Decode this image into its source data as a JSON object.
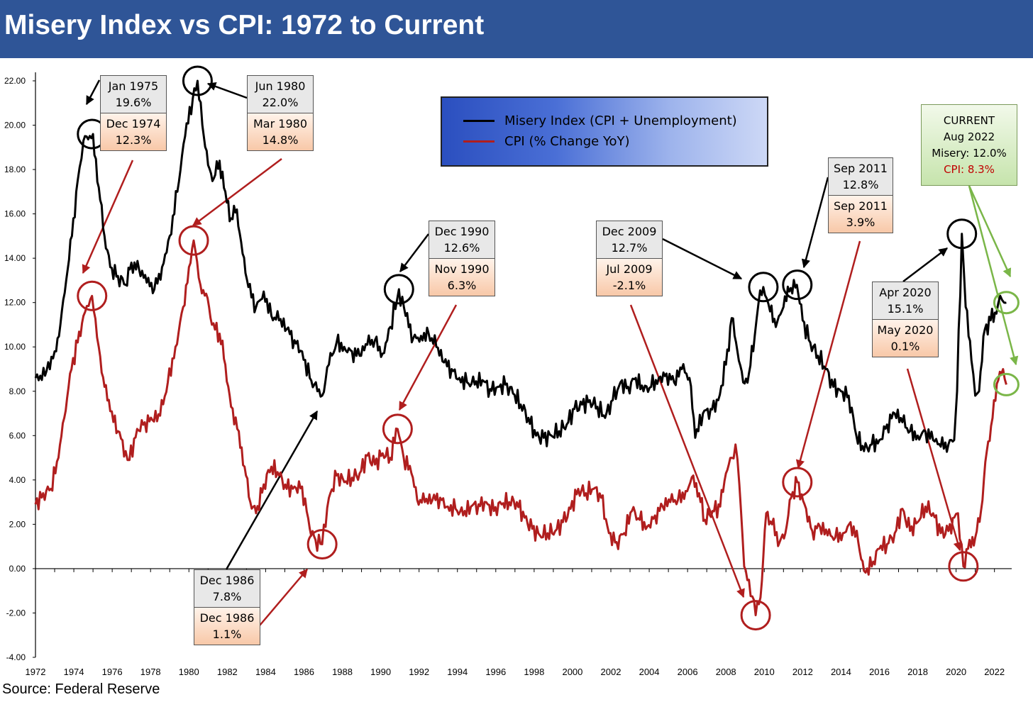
{
  "title": "Misery Index vs CPI: 1972 to Current",
  "source": "Source: Federal Reserve",
  "legend": {
    "misery": "Misery Index (CPI + Unemployment)",
    "cpi": "CPI (% Change YoY)"
  },
  "colors": {
    "misery": "#000000",
    "cpi": "#b01e1e",
    "title_bar": "#2f5597",
    "current_arrow": "#7ab648"
  },
  "current": {
    "l1": "CURRENT",
    "l2": "Aug 2022",
    "l3": "Misery: 12.0%",
    "l4": "CPI: 8.3%"
  },
  "annotations": [
    {
      "top_date": "Jan 1975",
      "top_value": "19.6%",
      "bottom_date": "Dec 1974",
      "bottom_value": "12.3%"
    },
    {
      "top_date": "Jun 1980",
      "top_value": "22.0%",
      "bottom_date": "Mar 1980",
      "bottom_value": "14.8%"
    },
    {
      "top_date": "Dec 1986",
      "top_value": "7.8%",
      "bottom_date": "Dec 1986",
      "bottom_value": "1.1%"
    },
    {
      "top_date": "Dec 1990",
      "top_value": "12.6%",
      "bottom_date": "Nov 1990",
      "bottom_value": "6.3%"
    },
    {
      "top_date": "Dec 2009",
      "top_value": "12.7%",
      "bottom_date": "Jul 2009",
      "bottom_value": "-2.1%"
    },
    {
      "top_date": "Sep 2011",
      "top_value": "12.8%",
      "bottom_date": "Sep 2011",
      "bottom_value": "3.9%"
    },
    {
      "top_date": "Apr 2020",
      "top_value": "15.1%",
      "bottom_date": "May 2020",
      "bottom_value": "0.1%"
    }
  ],
  "chart_data": {
    "type": "line",
    "title": "Misery Index vs CPI: 1972 to Current",
    "xlim": [
      1972,
      2022.9
    ],
    "ylim": [
      -4,
      22
    ],
    "x_ticks": [
      "1972",
      "1974",
      "1976",
      "1978",
      "1980",
      "1982",
      "1984",
      "1986",
      "1988",
      "1990",
      "1992",
      "1994",
      "1996",
      "1998",
      "2000",
      "2002",
      "2004",
      "2006",
      "2008",
      "2010",
      "2012",
      "2014",
      "2016",
      "2018",
      "2020",
      "2022"
    ],
    "y_ticks": [
      "22.00",
      "20.00",
      "18.00",
      "16.00",
      "14.00",
      "12.00",
      "10.00",
      "8.00",
      "6.00",
      "4.00",
      "2.00",
      "0.00",
      "-2.00",
      "-4.00"
    ],
    "grid": false,
    "legend_position": "top-center",
    "series": [
      {
        "name": "Misery Index (CPI + Unemployment)",
        "points": [
          [
            1972.0,
            8.6
          ],
          [
            1972.5,
            8.7
          ],
          [
            1973.0,
            9.8
          ],
          [
            1973.3,
            11.0
          ],
          [
            1973.6,
            13.0
          ],
          [
            1973.9,
            15.0
          ],
          [
            1974.2,
            17.5
          ],
          [
            1974.4,
            18.5
          ],
          [
            1974.5,
            19.3
          ],
          [
            1975.0,
            19.6
          ],
          [
            1975.3,
            17.2
          ],
          [
            1975.6,
            15.0
          ],
          [
            1975.9,
            13.6
          ],
          [
            1976.3,
            13.2
          ],
          [
            1976.7,
            12.8
          ],
          [
            1977.0,
            13.8
          ],
          [
            1977.4,
            13.5
          ],
          [
            1977.8,
            12.9
          ],
          [
            1978.2,
            12.6
          ],
          [
            1978.6,
            13.6
          ],
          [
            1979.0,
            15.0
          ],
          [
            1979.4,
            17.0
          ],
          [
            1979.8,
            19.5
          ],
          [
            1980.2,
            21.2
          ],
          [
            1980.45,
            22.0
          ],
          [
            1980.7,
            20.0
          ],
          [
            1981.0,
            18.2
          ],
          [
            1981.3,
            17.6
          ],
          [
            1981.6,
            18.4
          ],
          [
            1981.9,
            17.0
          ],
          [
            1982.2,
            15.8
          ],
          [
            1982.5,
            16.2
          ],
          [
            1982.8,
            14.2
          ],
          [
            1983.1,
            12.7
          ],
          [
            1983.5,
            11.8
          ],
          [
            1983.9,
            12.5
          ],
          [
            1984.3,
            11.4
          ],
          [
            1984.7,
            11.2
          ],
          [
            1985.1,
            10.8
          ],
          [
            1985.5,
            10.3
          ],
          [
            1985.9,
            9.8
          ],
          [
            1986.3,
            8.6
          ],
          [
            1986.7,
            8.0
          ],
          [
            1986.95,
            7.8
          ],
          [
            1987.3,
            9.2
          ],
          [
            1987.7,
            10.2
          ],
          [
            1988.1,
            10.0
          ],
          [
            1988.5,
            9.8
          ],
          [
            1988.9,
            9.6
          ],
          [
            1989.3,
            10.1
          ],
          [
            1989.7,
            10.3
          ],
          [
            1990.1,
            9.7
          ],
          [
            1990.5,
            10.9
          ],
          [
            1990.95,
            12.6
          ],
          [
            1991.3,
            11.4
          ],
          [
            1991.7,
            10.4
          ],
          [
            1992.1,
            10.5
          ],
          [
            1992.5,
            10.6
          ],
          [
            1992.9,
            10.0
          ],
          [
            1993.3,
            9.3
          ],
          [
            1993.7,
            9.0
          ],
          [
            1994.1,
            8.6
          ],
          [
            1994.5,
            8.4
          ],
          [
            1994.9,
            8.3
          ],
          [
            1995.3,
            8.5
          ],
          [
            1995.7,
            8.1
          ],
          [
            1996.1,
            8.2
          ],
          [
            1996.5,
            8.3
          ],
          [
            1996.9,
            7.9
          ],
          [
            1997.3,
            7.4
          ],
          [
            1997.7,
            6.8
          ],
          [
            1998.1,
            6.0
          ],
          [
            1998.5,
            5.9
          ],
          [
            1998.9,
            6.0
          ],
          [
            1999.3,
            6.2
          ],
          [
            1999.7,
            6.5
          ],
          [
            2000.1,
            7.2
          ],
          [
            2000.5,
            7.4
          ],
          [
            2000.9,
            7.6
          ],
          [
            2001.3,
            7.3
          ],
          [
            2001.7,
            6.8
          ],
          [
            2002.1,
            7.6
          ],
          [
            2002.5,
            8.4
          ],
          [
            2002.9,
            8.2
          ],
          [
            2003.3,
            8.6
          ],
          [
            2003.7,
            8.0
          ],
          [
            2004.1,
            8.2
          ],
          [
            2004.5,
            8.6
          ],
          [
            2004.9,
            8.8
          ],
          [
            2005.3,
            8.4
          ],
          [
            2005.7,
            9.0
          ],
          [
            2006.1,
            8.6
          ],
          [
            2006.4,
            5.9
          ],
          [
            2006.8,
            7.0
          ],
          [
            2007.2,
            7.2
          ],
          [
            2007.6,
            7.6
          ],
          [
            2008.0,
            9.2
          ],
          [
            2008.3,
            11.3
          ],
          [
            2008.6,
            9.8
          ],
          [
            2008.9,
            8.4
          ],
          [
            2009.2,
            8.8
          ],
          [
            2009.5,
            10.5
          ],
          [
            2009.7,
            12.0
          ],
          [
            2009.95,
            12.7
          ],
          [
            2010.3,
            11.6
          ],
          [
            2010.6,
            10.9
          ],
          [
            2011.0,
            11.8
          ],
          [
            2011.3,
            12.5
          ],
          [
            2011.7,
            12.8
          ],
          [
            2012.0,
            11.2
          ],
          [
            2012.4,
            10.2
          ],
          [
            2012.8,
            9.6
          ],
          [
            2013.2,
            9.0
          ],
          [
            2013.6,
            8.2
          ],
          [
            2014.0,
            8.0
          ],
          [
            2014.4,
            7.8
          ],
          [
            2014.8,
            6.0
          ],
          [
            2015.2,
            5.3
          ],
          [
            2015.6,
            5.6
          ],
          [
            2016.0,
            5.8
          ],
          [
            2016.4,
            6.5
          ],
          [
            2016.8,
            7.0
          ],
          [
            2017.2,
            6.6
          ],
          [
            2017.6,
            6.2
          ],
          [
            2018.0,
            6.0
          ],
          [
            2018.4,
            6.2
          ],
          [
            2018.8,
            5.8
          ],
          [
            2019.2,
            5.5
          ],
          [
            2019.6,
            5.6
          ],
          [
            2019.9,
            5.8
          ],
          [
            2020.05,
            8.0
          ],
          [
            2020.3,
            15.1
          ],
          [
            2020.5,
            11.8
          ],
          [
            2020.8,
            9.4
          ],
          [
            2021.0,
            7.8
          ],
          [
            2021.2,
            8.0
          ],
          [
            2021.5,
            10.8
          ],
          [
            2021.8,
            11.2
          ],
          [
            2022.1,
            11.5
          ],
          [
            2022.3,
            12.3
          ],
          [
            2022.5,
            12.0
          ],
          [
            2022.62,
            12.0
          ]
        ]
      },
      {
        "name": "CPI (% Change YoY)",
        "points": [
          [
            1972.0,
            2.9
          ],
          [
            1972.4,
            3.4
          ],
          [
            1972.8,
            3.6
          ],
          [
            1973.2,
            5.0
          ],
          [
            1973.5,
            6.8
          ],
          [
            1973.8,
            8.8
          ],
          [
            1974.2,
            10.2
          ],
          [
            1974.5,
            11.4
          ],
          [
            1974.95,
            12.3
          ],
          [
            1975.3,
            10.0
          ],
          [
            1975.6,
            8.2
          ],
          [
            1975.9,
            7.1
          ],
          [
            1976.3,
            6.2
          ],
          [
            1976.7,
            5.3
          ],
          [
            1976.9,
            4.9
          ],
          [
            1977.3,
            6.3
          ],
          [
            1977.7,
            6.6
          ],
          [
            1978.1,
            6.7
          ],
          [
            1978.5,
            6.9
          ],
          [
            1978.9,
            8.4
          ],
          [
            1979.3,
            10.0
          ],
          [
            1979.7,
            11.8
          ],
          [
            1980.0,
            13.6
          ],
          [
            1980.25,
            14.8
          ],
          [
            1980.6,
            12.8
          ],
          [
            1980.9,
            12.4
          ],
          [
            1981.2,
            11.0
          ],
          [
            1981.6,
            10.6
          ],
          [
            1981.9,
            9.2
          ],
          [
            1982.2,
            7.3
          ],
          [
            1982.6,
            6.2
          ],
          [
            1982.9,
            4.6
          ],
          [
            1983.2,
            3.0
          ],
          [
            1983.5,
            2.5
          ],
          [
            1983.9,
            3.8
          ],
          [
            1984.3,
            4.6
          ],
          [
            1984.7,
            4.2
          ],
          [
            1985.1,
            3.6
          ],
          [
            1985.5,
            3.7
          ],
          [
            1985.9,
            3.7
          ],
          [
            1986.3,
            1.8
          ],
          [
            1986.6,
            1.3
          ],
          [
            1986.95,
            1.1
          ],
          [
            1987.3,
            3.2
          ],
          [
            1987.7,
            4.2
          ],
          [
            1988.1,
            3.9
          ],
          [
            1988.5,
            4.1
          ],
          [
            1988.9,
            4.3
          ],
          [
            1989.3,
            5.1
          ],
          [
            1989.7,
            4.7
          ],
          [
            1990.1,
            5.2
          ],
          [
            1990.5,
            5.0
          ],
          [
            1990.88,
            6.3
          ],
          [
            1991.2,
            5.0
          ],
          [
            1991.6,
            4.3
          ],
          [
            1991.9,
            3.1
          ],
          [
            1992.3,
            3.0
          ],
          [
            1992.7,
            3.1
          ],
          [
            1993.1,
            3.2
          ],
          [
            1993.5,
            2.8
          ],
          [
            1993.9,
            2.7
          ],
          [
            1994.3,
            2.4
          ],
          [
            1994.7,
            2.8
          ],
          [
            1995.1,
            2.9
          ],
          [
            1995.5,
            3.0
          ],
          [
            1995.9,
            2.6
          ],
          [
            1996.3,
            2.9
          ],
          [
            1996.7,
            3.0
          ],
          [
            1997.1,
            3.0
          ],
          [
            1997.5,
            2.3
          ],
          [
            1997.9,
            1.8
          ],
          [
            1998.3,
            1.5
          ],
          [
            1998.7,
            1.6
          ],
          [
            1999.1,
            1.7
          ],
          [
            1999.5,
            2.1
          ],
          [
            1999.9,
            2.7
          ],
          [
            2000.3,
            3.6
          ],
          [
            2000.7,
            3.4
          ],
          [
            2001.1,
            3.6
          ],
          [
            2001.5,
            3.2
          ],
          [
            2001.9,
            1.6
          ],
          [
            2002.3,
            1.2
          ],
          [
            2002.7,
            1.6
          ],
          [
            2003.1,
            2.6
          ],
          [
            2003.5,
            2.2
          ],
          [
            2003.9,
            1.9
          ],
          [
            2004.3,
            2.4
          ],
          [
            2004.7,
            2.8
          ],
          [
            2005.1,
            3.0
          ],
          [
            2005.5,
            3.1
          ],
          [
            2005.9,
            3.5
          ],
          [
            2006.3,
            4.2
          ],
          [
            2006.6,
            3.4
          ],
          [
            2006.9,
            2.2
          ],
          [
            2007.3,
            2.6
          ],
          [
            2007.7,
            2.8
          ],
          [
            2008.0,
            4.3
          ],
          [
            2008.3,
            5.0
          ],
          [
            2008.5,
            5.6
          ],
          [
            2008.7,
            3.8
          ],
          [
            2008.95,
            0.1
          ],
          [
            2009.2,
            -0.5
          ],
          [
            2009.55,
            -2.1
          ],
          [
            2009.8,
            -1.3
          ],
          [
            2010.1,
            2.5
          ],
          [
            2010.4,
            2.0
          ],
          [
            2010.8,
            1.2
          ],
          [
            2011.1,
            1.6
          ],
          [
            2011.4,
            3.2
          ],
          [
            2011.72,
            3.9
          ],
          [
            2012.1,
            2.9
          ],
          [
            2012.5,
            1.7
          ],
          [
            2012.9,
            1.9
          ],
          [
            2013.3,
            1.5
          ],
          [
            2013.7,
            1.4
          ],
          [
            2014.1,
            1.6
          ],
          [
            2014.5,
            2.1
          ],
          [
            2014.9,
            1.2
          ],
          [
            2015.2,
            -0.1
          ],
          [
            2015.6,
            0.1
          ],
          [
            2016.0,
            0.9
          ],
          [
            2016.4,
            1.1
          ],
          [
            2016.8,
            1.6
          ],
          [
            2017.2,
            2.7
          ],
          [
            2017.6,
            1.7
          ],
          [
            2018.0,
            2.1
          ],
          [
            2018.4,
            2.8
          ],
          [
            2018.8,
            2.5
          ],
          [
            2019.2,
            1.6
          ],
          [
            2019.6,
            1.7
          ],
          [
            2019.9,
            2.3
          ],
          [
            2020.1,
            2.5
          ],
          [
            2020.38,
            0.1
          ],
          [
            2020.7,
            1.3
          ],
          [
            2021.0,
            1.4
          ],
          [
            2021.3,
            2.6
          ],
          [
            2021.6,
            5.3
          ],
          [
            2021.9,
            6.8
          ],
          [
            2022.2,
            8.5
          ],
          [
            2022.45,
            9.0
          ],
          [
            2022.62,
            8.3
          ]
        ]
      }
    ]
  }
}
